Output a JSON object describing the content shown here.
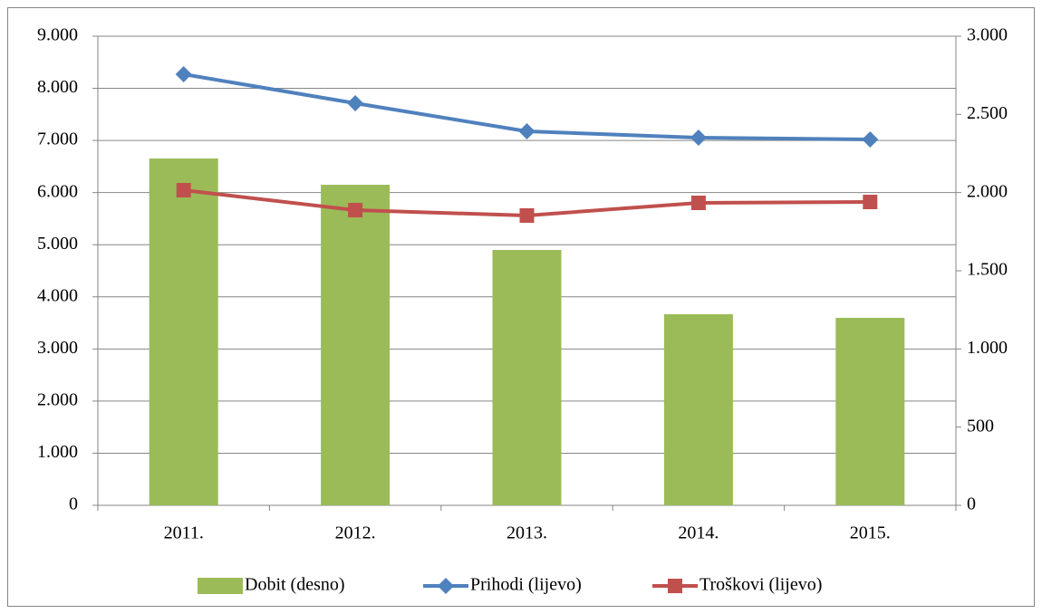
{
  "chart_data": {
    "type": "bar",
    "categories": [
      "2011.",
      "2012.",
      "2013.",
      "2014.",
      "2015."
    ],
    "series": [
      {
        "name": "Dobit (desno)",
        "type": "bar",
        "axis": "y2",
        "color": "#9bbb59",
        "values": [
          2218,
          2050,
          1633,
          1222,
          1199
        ]
      },
      {
        "name": "Prihodi (lijevo)",
        "type": "line",
        "axis": "y",
        "color": "#4f81bd",
        "marker": "diamond",
        "values": [
          8270,
          7714,
          7176,
          7054,
          7019
        ]
      },
      {
        "name": "Troškovi (lijevo)",
        "type": "line",
        "axis": "y",
        "color": "#c0504d",
        "marker": "square",
        "values": [
          6046,
          5664,
          5560,
          5803,
          5820
        ]
      }
    ],
    "ylim": [
      0,
      9000
    ],
    "yticks": [
      0,
      {
        "value": 1000,
        "label": "1.000"
      },
      {
        "value": 2000,
        "label": "2.000"
      },
      {
        "value": 3000,
        "label": "3.000"
      },
      {
        "value": 4000,
        "label": "4.000"
      },
      {
        "value": 5000,
        "label": "5.000"
      },
      {
        "value": 6000,
        "label": "6.000"
      },
      {
        "value": 7000,
        "label": "7.000"
      },
      {
        "value": 8000,
        "label": "8.000"
      },
      {
        "value": 9000,
        "label": "9.000"
      }
    ],
    "y2lim": [
      0,
      3000
    ],
    "y2ticks": [
      0,
      500,
      {
        "value": 1000,
        "label": "1.000"
      },
      {
        "value": 1500,
        "label": "1.500"
      },
      {
        "value": 2000,
        "label": "2.000"
      },
      {
        "value": 2500,
        "label": "2.500"
      },
      {
        "value": 3000,
        "label": "3.000"
      }
    ],
    "grid": true,
    "legend": "bottom"
  }
}
